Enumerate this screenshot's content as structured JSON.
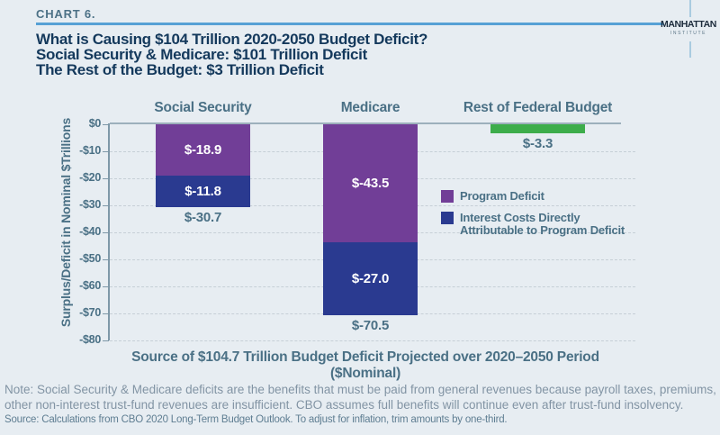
{
  "header": {
    "kicker": "CHART 6.",
    "title_lines": [
      "What is Causing $104 Trillion 2020-2050 Budget Deficit?",
      "Social Security & Medicare: $101 Trillion Deficit",
      "The Rest of the Budget: $3 Trillion Deficit"
    ],
    "logo": {
      "name": "MANHATTAN",
      "subname": "INSTITUTE"
    }
  },
  "chart_data": {
    "type": "bar",
    "stacked": true,
    "title": "Source of $104.7 Trillion Budget Deficit Projected over 2020–2050 Period ($Nominal)",
    "ylabel": "Surplus/Deficit in Nominal $Trillions",
    "ylim": [
      -80,
      0
    ],
    "grid": "horizontal-dashed",
    "legend_position": "center-right",
    "yticks": [
      {
        "value": 0,
        "label": "$0"
      },
      {
        "value": -10,
        "label": "-$10"
      },
      {
        "value": -20,
        "label": "-$20"
      },
      {
        "value": -30,
        "label": "-$30"
      },
      {
        "value": -40,
        "label": "-$40"
      },
      {
        "value": -50,
        "label": "-$50"
      },
      {
        "value": -60,
        "label": "-$60"
      },
      {
        "value": -70,
        "label": "-$70"
      },
      {
        "value": -80,
        "label": "-$80"
      }
    ],
    "categories": [
      "Social Security",
      "Medicare",
      "Rest of Federal Budget"
    ],
    "bars": [
      {
        "category": "Social Security",
        "segments": [
          {
            "name": "Program Deficit",
            "value": -18.9,
            "label": "$-18.9",
            "color": "#713e97"
          },
          {
            "name": "Interest Costs Directly Attributable to Program Deficit",
            "value": -11.8,
            "label": "$-11.8",
            "color": "#2a3a90"
          }
        ],
        "total": -30.7,
        "total_label": "$-30.7"
      },
      {
        "category": "Medicare",
        "segments": [
          {
            "name": "Program Deficit",
            "value": -43.5,
            "label": "$-43.5",
            "color": "#713e97"
          },
          {
            "name": "Interest Costs Directly Attributable to Program Deficit",
            "value": -27.0,
            "label": "$-27.0",
            "color": "#2a3a90"
          }
        ],
        "total": -70.5,
        "total_label": "$-70.5"
      },
      {
        "category": "Rest of Federal Budget",
        "segments": [
          {
            "name": "Rest of Federal Budget Deficit",
            "value": -3.3,
            "label": "",
            "color": "#3dad4b"
          }
        ],
        "total": -3.3,
        "total_label": "$-3.3"
      }
    ],
    "legend": [
      {
        "label": "Program Deficit",
        "color": "#713e97"
      },
      {
        "label": "Interest Costs Directly Attributable to Program Deficit",
        "color": "#2a3a90"
      }
    ]
  },
  "footer": {
    "note_lines": [
      "Note: Social Security & Medicare deficits are the benefits that must be paid from general revenues because payroll taxes, premiums, and",
      "other non-interest trust-fund revenues are insufficient. CBO assumes full benefits will continue even after trust-fund insolvency."
    ],
    "source": "Source: Calculations from CBO 2020 Long-Term Budget Outlook. To adjust for inflation, trim amounts by one-third."
  },
  "colors": {
    "background": "#e7edf2",
    "accent_rule_blue": "#57a1d5",
    "title_navy": "#14395c",
    "slate_text": "#4a7085",
    "program_deficit_purple": "#713e97",
    "interest_cost_blue": "#2a3a90",
    "rest_of_budget_green": "#3dad4b",
    "note_gray": "#8294a4"
  }
}
